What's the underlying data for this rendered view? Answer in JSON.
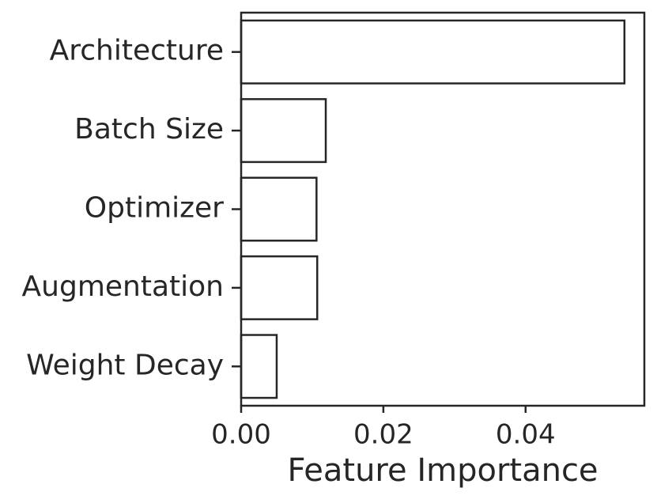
{
  "chart_data": {
    "type": "barh",
    "x_label": "Feature Importance",
    "categories": [
      "Architecture",
      "Batch Size",
      "Optimizer",
      "Augmentation",
      "Weight Decay"
    ],
    "values": [
      0.0539,
      0.0119,
      0.0106,
      0.0107,
      0.005
    ],
    "color": "#ffffff",
    "edgecolor": "#262626",
    "xlim": [
      0,
      0.0567
    ],
    "xticks": [
      {
        "value": 0,
        "label": "0.00"
      },
      {
        "value": 0.02,
        "label": "0.02"
      },
      {
        "value": 0.04,
        "label": "0.04"
      }
    ]
  }
}
